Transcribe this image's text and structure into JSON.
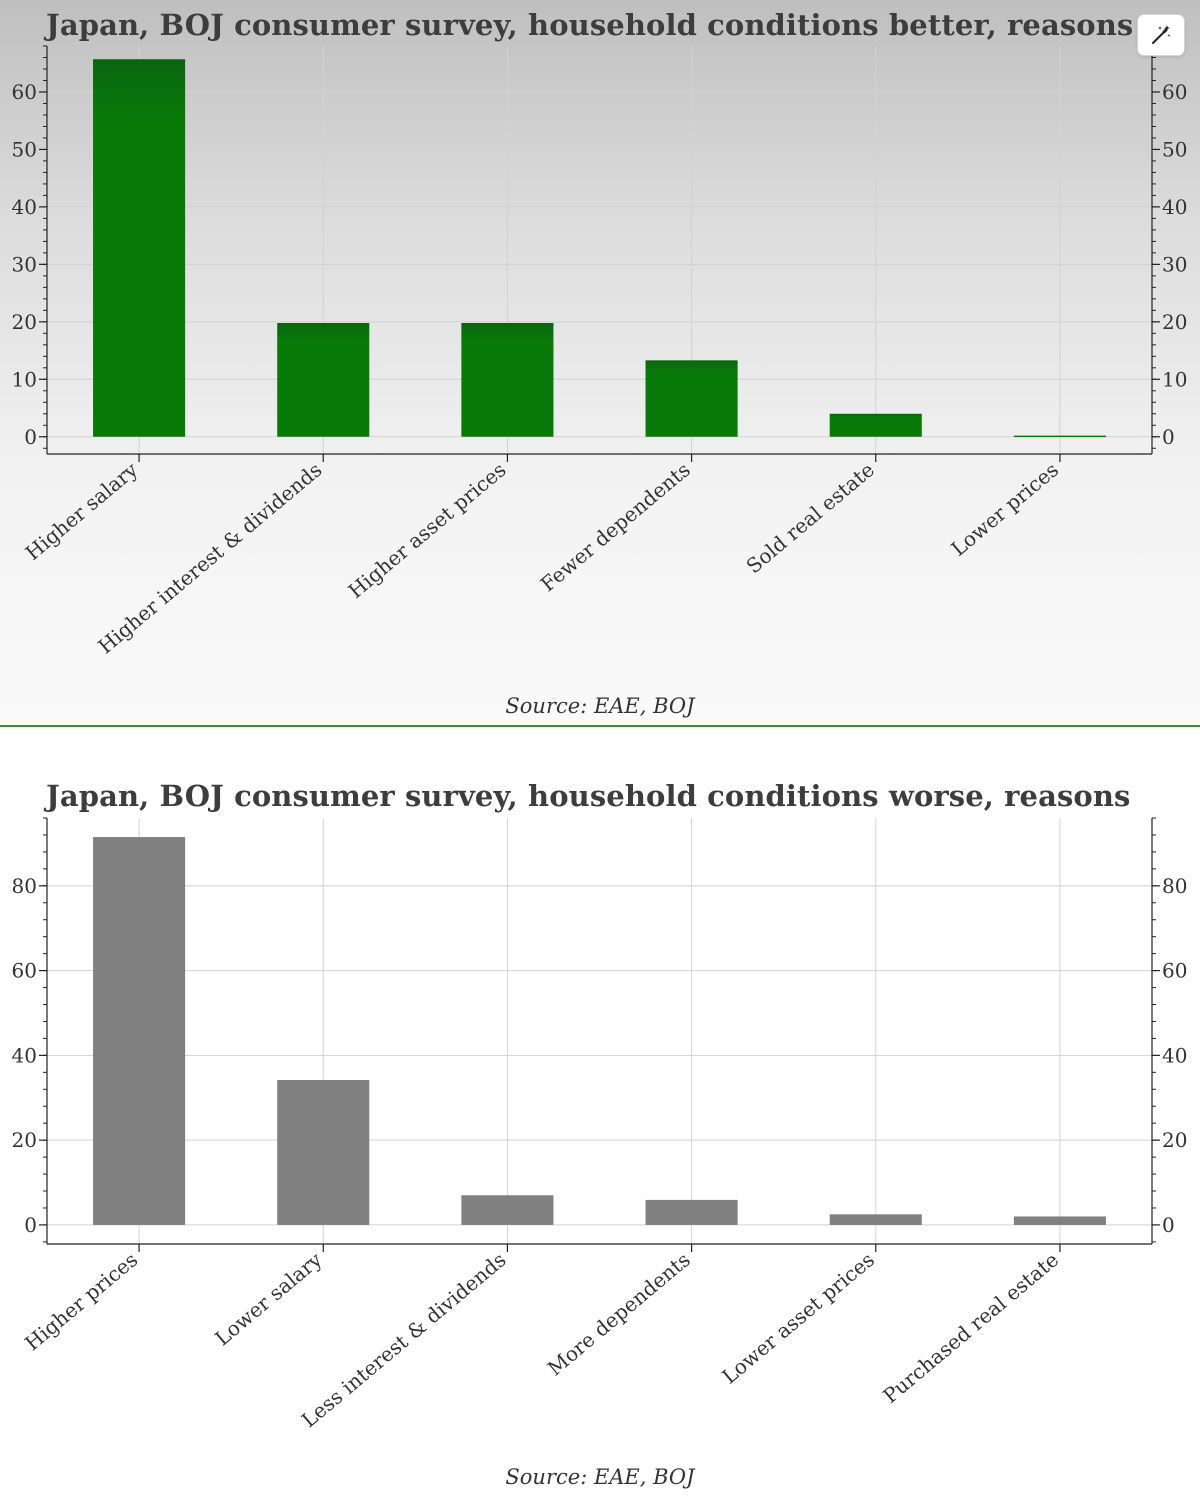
{
  "toolbar": {
    "tool_icon": "magic-wand-icon"
  },
  "chart_data": [
    {
      "type": "bar",
      "title": "Japan, BOJ consumer survey, household conditions better, reasons",
      "categories": [
        "Higher salary",
        "Higher interest & dividends",
        "Higher asset prices",
        "Fewer dependents",
        "Sold real estate",
        "Lower prices"
      ],
      "values": [
        65.7,
        19.8,
        19.8,
        13.3,
        4.0,
        0.2
      ],
      "ylim": [
        -3,
        68
      ],
      "yticks": [
        0,
        10,
        20,
        30,
        40,
        50,
        60
      ],
      "minor_tick_step": 2,
      "bar_color": "#087a08",
      "bar_color_top": "#0a6410",
      "grid": true,
      "secondary_y_axis": true,
      "source": "Source: EAE, BOJ"
    },
    {
      "type": "bar",
      "title": "Japan, BOJ consumer survey, household conditions worse, reasons",
      "categories": [
        "Higher prices",
        "Lower salary",
        "Less interest & dividends",
        "More dependents",
        "Lower asset prices",
        "Purchased real estate"
      ],
      "values": [
        91.5,
        34.2,
        7.0,
        5.9,
        2.5,
        2.0
      ],
      "ylim": [
        -4.5,
        96
      ],
      "yticks": [
        0,
        20,
        40,
        60,
        80
      ],
      "minor_tick_step": 4,
      "bar_color": "#808080",
      "grid": true,
      "secondary_y_axis": true,
      "source": "Source: EAE, BOJ"
    }
  ]
}
